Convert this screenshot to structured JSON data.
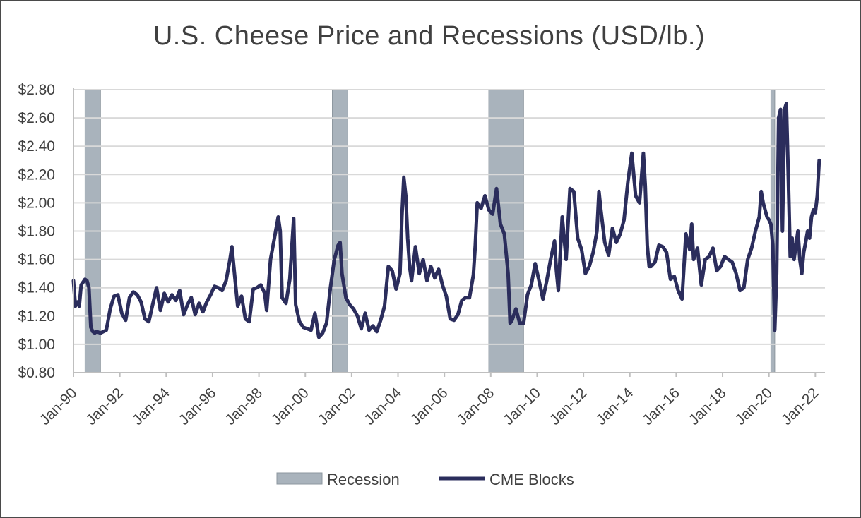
{
  "chart_data": {
    "type": "line",
    "title": "U.S. Cheese Price and Recessions (USD/lb.)",
    "xlabel": "",
    "ylabel": "",
    "xlim": [
      "Jan-90",
      "Jun-22"
    ],
    "ylim": [
      0.8,
      2.8
    ],
    "y_ticks": [
      "$0.80",
      "$1.00",
      "$1.20",
      "$1.40",
      "$1.60",
      "$1.80",
      "$2.00",
      "$2.20",
      "$2.40",
      "$2.60",
      "$2.80"
    ],
    "x_ticks": [
      "Jan-90",
      "Jan-92",
      "Jan-94",
      "Jan-96",
      "Jan-98",
      "Jan-00",
      "Jan-02",
      "Jan-04",
      "Jan-06",
      "Jan-08",
      "Jan-10",
      "Jan-12",
      "Jan-14",
      "Jan-16",
      "Jan-18",
      "Jan-20",
      "Jan-22"
    ],
    "grid": "horizontal",
    "legend_position": "bottom",
    "colors": {
      "recession": "#a9b3bc",
      "line": "#2b2d5c",
      "grid": "#d9d9d9"
    },
    "series": [
      {
        "name": "Recession",
        "kind": "shaded-band",
        "periods": [
          [
            "Jul-90",
            "Mar-91"
          ],
          [
            "Mar-01",
            "Nov-01"
          ],
          [
            "Dec-07",
            "Jun-09"
          ],
          [
            "Feb-20",
            "Apr-20"
          ]
        ]
      },
      {
        "name": "CME Blocks",
        "kind": "line",
        "points": [
          [
            "Jan-90",
            1.45
          ],
          [
            "Feb-90",
            1.27
          ],
          [
            "Mar-90",
            1.3
          ],
          [
            "Apr-90",
            1.27
          ],
          [
            "May-90",
            1.42
          ],
          [
            "Jun-90",
            1.44
          ],
          [
            "Jul-90",
            1.46
          ],
          [
            "Aug-90",
            1.45
          ],
          [
            "Sep-90",
            1.4
          ],
          [
            "Oct-90",
            1.12
          ],
          [
            "Nov-90",
            1.09
          ],
          [
            "Dec-90",
            1.08
          ],
          [
            "Jan-91",
            1.09
          ],
          [
            "Mar-91",
            1.08
          ],
          [
            "Jun-91",
            1.1
          ],
          [
            "Aug-91",
            1.25
          ],
          [
            "Oct-91",
            1.34
          ],
          [
            "Dec-91",
            1.35
          ],
          [
            "Feb-92",
            1.22
          ],
          [
            "Apr-92",
            1.17
          ],
          [
            "Jun-92",
            1.33
          ],
          [
            "Aug-92",
            1.37
          ],
          [
            "Oct-92",
            1.35
          ],
          [
            "Dec-92",
            1.3
          ],
          [
            "Feb-93",
            1.18
          ],
          [
            "Apr-93",
            1.16
          ],
          [
            "Jun-93",
            1.28
          ],
          [
            "Aug-93",
            1.4
          ],
          [
            "Oct-93",
            1.24
          ],
          [
            "Dec-93",
            1.36
          ],
          [
            "Feb-94",
            1.3
          ],
          [
            "Apr-94",
            1.35
          ],
          [
            "Jun-94",
            1.31
          ],
          [
            "Aug-94",
            1.38
          ],
          [
            "Oct-94",
            1.21
          ],
          [
            "Dec-94",
            1.28
          ],
          [
            "Feb-95",
            1.33
          ],
          [
            "Apr-95",
            1.21
          ],
          [
            "Jun-95",
            1.29
          ],
          [
            "Aug-95",
            1.23
          ],
          [
            "Oct-95",
            1.3
          ],
          [
            "Dec-95",
            1.35
          ],
          [
            "Feb-96",
            1.41
          ],
          [
            "Apr-96",
            1.4
          ],
          [
            "Jun-96",
            1.38
          ],
          [
            "Aug-96",
            1.45
          ],
          [
            "Oct-96",
            1.6
          ],
          [
            "Nov-96",
            1.69
          ],
          [
            "Dec-96",
            1.55
          ],
          [
            "Feb-97",
            1.27
          ],
          [
            "Apr-97",
            1.34
          ],
          [
            "Jun-97",
            1.18
          ],
          [
            "Aug-97",
            1.16
          ],
          [
            "Oct-97",
            1.39
          ],
          [
            "Dec-97",
            1.4
          ],
          [
            "Feb-98",
            1.42
          ],
          [
            "Apr-98",
            1.36
          ],
          [
            "May-98",
            1.24
          ],
          [
            "Jul-98",
            1.6
          ],
          [
            "Sep-98",
            1.75
          ],
          [
            "Nov-98",
            1.9
          ],
          [
            "Dec-98",
            1.8
          ],
          [
            "Jan-99",
            1.33
          ],
          [
            "Mar-99",
            1.29
          ],
          [
            "May-99",
            1.46
          ],
          [
            "Jul-99",
            1.89
          ],
          [
            "Aug-99",
            1.28
          ],
          [
            "Oct-99",
            1.16
          ],
          [
            "Dec-99",
            1.12
          ],
          [
            "Feb-00",
            1.11
          ],
          [
            "Apr-00",
            1.1
          ],
          [
            "Jun-00",
            1.22
          ],
          [
            "Aug-00",
            1.05
          ],
          [
            "Oct-00",
            1.08
          ],
          [
            "Dec-00",
            1.15
          ],
          [
            "Feb-01",
            1.4
          ],
          [
            "Apr-01",
            1.6
          ],
          [
            "Jun-01",
            1.7
          ],
          [
            "Jul-01",
            1.72
          ],
          [
            "Aug-01",
            1.5
          ],
          [
            "Oct-01",
            1.33
          ],
          [
            "Dec-01",
            1.28
          ],
          [
            "Feb-02",
            1.25
          ],
          [
            "Apr-02",
            1.2
          ],
          [
            "Jun-02",
            1.11
          ],
          [
            "Aug-02",
            1.22
          ],
          [
            "Oct-02",
            1.1
          ],
          [
            "Dec-02",
            1.13
          ],
          [
            "Feb-03",
            1.09
          ],
          [
            "Apr-03",
            1.17
          ],
          [
            "Jun-03",
            1.27
          ],
          [
            "Aug-03",
            1.55
          ],
          [
            "Oct-03",
            1.52
          ],
          [
            "Dec-03",
            1.39
          ],
          [
            "Feb-04",
            1.5
          ],
          [
            "Mar-04",
            1.9
          ],
          [
            "Apr-04",
            2.18
          ],
          [
            "May-04",
            2.05
          ],
          [
            "Jun-04",
            1.75
          ],
          [
            "Jul-04",
            1.55
          ],
          [
            "Aug-04",
            1.45
          ],
          [
            "Oct-04",
            1.69
          ],
          [
            "Dec-04",
            1.5
          ],
          [
            "Feb-05",
            1.6
          ],
          [
            "Apr-05",
            1.45
          ],
          [
            "Jun-05",
            1.55
          ],
          [
            "Aug-05",
            1.47
          ],
          [
            "Oct-05",
            1.53
          ],
          [
            "Dec-05",
            1.42
          ],
          [
            "Feb-06",
            1.34
          ],
          [
            "Apr-06",
            1.18
          ],
          [
            "Jun-06",
            1.17
          ],
          [
            "Aug-06",
            1.21
          ],
          [
            "Oct-06",
            1.31
          ],
          [
            "Dec-06",
            1.33
          ],
          [
            "Feb-07",
            1.33
          ],
          [
            "Apr-07",
            1.49
          ],
          [
            "May-07",
            1.7
          ],
          [
            "Jun-07",
            2.0
          ],
          [
            "Aug-07",
            1.96
          ],
          [
            "Oct-07",
            2.05
          ],
          [
            "Dec-07",
            1.95
          ],
          [
            "Feb-08",
            1.92
          ],
          [
            "Apr-08",
            2.1
          ],
          [
            "Jun-08",
            1.85
          ],
          [
            "Aug-08",
            1.78
          ],
          [
            "Oct-08",
            1.5
          ],
          [
            "Nov-08",
            1.15
          ],
          [
            "Dec-08",
            1.17
          ],
          [
            "Feb-09",
            1.25
          ],
          [
            "Apr-09",
            1.15
          ],
          [
            "Jun-09",
            1.15
          ],
          [
            "Aug-09",
            1.35
          ],
          [
            "Oct-09",
            1.42
          ],
          [
            "Dec-09",
            1.57
          ],
          [
            "Feb-10",
            1.45
          ],
          [
            "Apr-10",
            1.32
          ],
          [
            "Jun-10",
            1.45
          ],
          [
            "Aug-10",
            1.6
          ],
          [
            "Oct-10",
            1.73
          ],
          [
            "Nov-10",
            1.52
          ],
          [
            "Dec-10",
            1.38
          ],
          [
            "Feb-11",
            1.9
          ],
          [
            "Apr-11",
            1.6
          ],
          [
            "Jun-11",
            2.1
          ],
          [
            "Aug-11",
            2.08
          ],
          [
            "Oct-11",
            1.75
          ],
          [
            "Dec-11",
            1.67
          ],
          [
            "Feb-12",
            1.5
          ],
          [
            "Apr-12",
            1.55
          ],
          [
            "Jun-12",
            1.65
          ],
          [
            "Aug-12",
            1.8
          ],
          [
            "Sep-12",
            2.08
          ],
          [
            "Oct-12",
            1.95
          ],
          [
            "Dec-12",
            1.72
          ],
          [
            "Feb-13",
            1.63
          ],
          [
            "Apr-13",
            1.82
          ],
          [
            "Jun-13",
            1.72
          ],
          [
            "Aug-13",
            1.78
          ],
          [
            "Oct-13",
            1.88
          ],
          [
            "Dec-13",
            2.15
          ],
          [
            "Feb-14",
            2.35
          ],
          [
            "Apr-14",
            2.05
          ],
          [
            "Jun-14",
            2.0
          ],
          [
            "Aug-14",
            2.35
          ],
          [
            "Sep-14",
            2.12
          ],
          [
            "Oct-14",
            1.7
          ],
          [
            "Nov-14",
            1.55
          ],
          [
            "Dec-14",
            1.55
          ],
          [
            "Feb-15",
            1.58
          ],
          [
            "Apr-15",
            1.7
          ],
          [
            "Jun-15",
            1.69
          ],
          [
            "Aug-15",
            1.65
          ],
          [
            "Oct-15",
            1.46
          ],
          [
            "Dec-15",
            1.48
          ],
          [
            "Feb-16",
            1.38
          ],
          [
            "Apr-16",
            1.32
          ],
          [
            "Jun-16",
            1.78
          ],
          [
            "Aug-16",
            1.67
          ],
          [
            "Sep-16",
            1.85
          ],
          [
            "Oct-16",
            1.6
          ],
          [
            "Dec-16",
            1.68
          ],
          [
            "Feb-17",
            1.42
          ],
          [
            "Apr-17",
            1.6
          ],
          [
            "Jun-17",
            1.62
          ],
          [
            "Aug-17",
            1.68
          ],
          [
            "Oct-17",
            1.52
          ],
          [
            "Dec-17",
            1.55
          ],
          [
            "Feb-18",
            1.62
          ],
          [
            "Apr-18",
            1.6
          ],
          [
            "Jun-18",
            1.58
          ],
          [
            "Aug-18",
            1.5
          ],
          [
            "Oct-18",
            1.38
          ],
          [
            "Dec-18",
            1.4
          ],
          [
            "Feb-19",
            1.6
          ],
          [
            "Apr-19",
            1.68
          ],
          [
            "Jun-19",
            1.8
          ],
          [
            "Aug-19",
            1.9
          ],
          [
            "Sep-19",
            2.08
          ],
          [
            "Oct-19",
            2.0
          ],
          [
            "Dec-19",
            1.9
          ],
          [
            "Jan-20",
            1.88
          ],
          [
            "Feb-20",
            1.85
          ],
          [
            "Mar-20",
            1.7
          ],
          [
            "Apr-20",
            1.1
          ],
          [
            "May-20",
            1.5
          ],
          [
            "Jun-20",
            2.6
          ],
          [
            "Jul-20",
            2.66
          ],
          [
            "Aug-20",
            1.8
          ],
          [
            "Sep-20",
            2.66
          ],
          [
            "Oct-20",
            2.7
          ],
          [
            "Nov-20",
            2.2
          ],
          [
            "Dec-20",
            1.62
          ],
          [
            "Jan-21",
            1.75
          ],
          [
            "Feb-21",
            1.6
          ],
          [
            "Mar-21",
            1.7
          ],
          [
            "Apr-21",
            1.8
          ],
          [
            "May-21",
            1.6
          ],
          [
            "Jun-21",
            1.5
          ],
          [
            "Jul-21",
            1.65
          ],
          [
            "Aug-21",
            1.72
          ],
          [
            "Sep-21",
            1.8
          ],
          [
            "Oct-21",
            1.75
          ],
          [
            "Nov-21",
            1.9
          ],
          [
            "Dec-21",
            1.95
          ],
          [
            "Jan-22",
            1.93
          ],
          [
            "Feb-22",
            2.05
          ],
          [
            "Mar-22",
            2.3
          ]
        ]
      }
    ]
  }
}
